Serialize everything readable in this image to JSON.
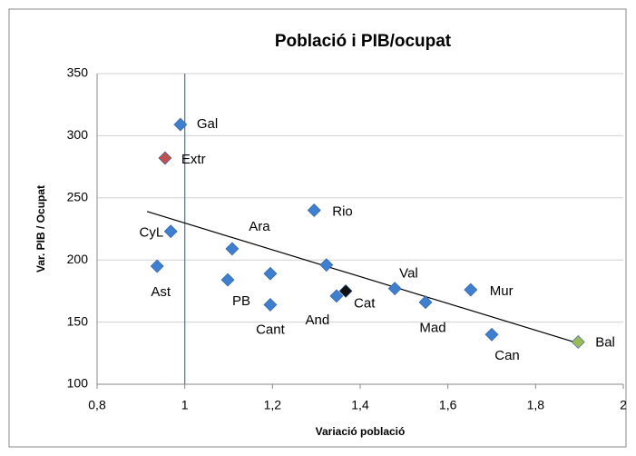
{
  "chart_data": {
    "type": "scatter",
    "title": "Població i PIB/ocupat",
    "x_label": "Variació població",
    "y_label": "Var. PIB / Ocupat",
    "x": [
      0.99,
      0.955,
      0.968,
      0.937,
      1.108,
      1.098,
      1.195,
      1.195,
      1.295,
      1.323,
      1.346,
      1.367,
      1.479,
      1.549,
      1.652,
      1.7,
      1.897
    ],
    "y": [
      309,
      282,
      223,
      195,
      209,
      184,
      189,
      164,
      240,
      196,
      171,
      175,
      177,
      166,
      176,
      140,
      134
    ],
    "labels": [
      "Gal",
      "Extr",
      "CyL",
      "Ast",
      "Ara",
      "PB",
      null,
      "Cant",
      "Rio",
      null,
      "And",
      "Cat",
      "Val",
      "Mad",
      "Mur",
      "Can",
      "Bal"
    ],
    "point_colors": [
      "#3f7fcf",
      "#c0504d",
      "#3f7fcf",
      "#3f7fcf",
      "#3f7fcf",
      "#3f7fcf",
      "#3f7fcf",
      "#3f7fcf",
      "#3f7fcf",
      "#3f7fcf",
      "#3f7fcf",
      "#111111",
      "#3f7fcf",
      "#3f7fcf",
      "#3f7fcf",
      "#3f7fcf",
      "#9bbb59"
    ],
    "xlim": [
      0.8,
      2
    ],
    "ylim": [
      100,
      350
    ],
    "xticks": [
      {
        "value": 0.8,
        "label": "0,8"
      },
      1,
      {
        "value": 1.2,
        "label": "1,2"
      },
      {
        "value": 1.4,
        "label": "1,4"
      },
      {
        "value": 1.6,
        "label": "1,6"
      },
      {
        "value": 1.8,
        "label": "1,8"
      },
      2
    ],
    "yticks": [
      100,
      150,
      200,
      250,
      300,
      350
    ],
    "grid": true,
    "vertical_line": {
      "x": 1,
      "color": "#4a7ec8"
    },
    "trendline": {
      "x": [
        0.914,
        1.897
      ],
      "y": [
        239,
        133
      ],
      "color": "#000000"
    }
  }
}
